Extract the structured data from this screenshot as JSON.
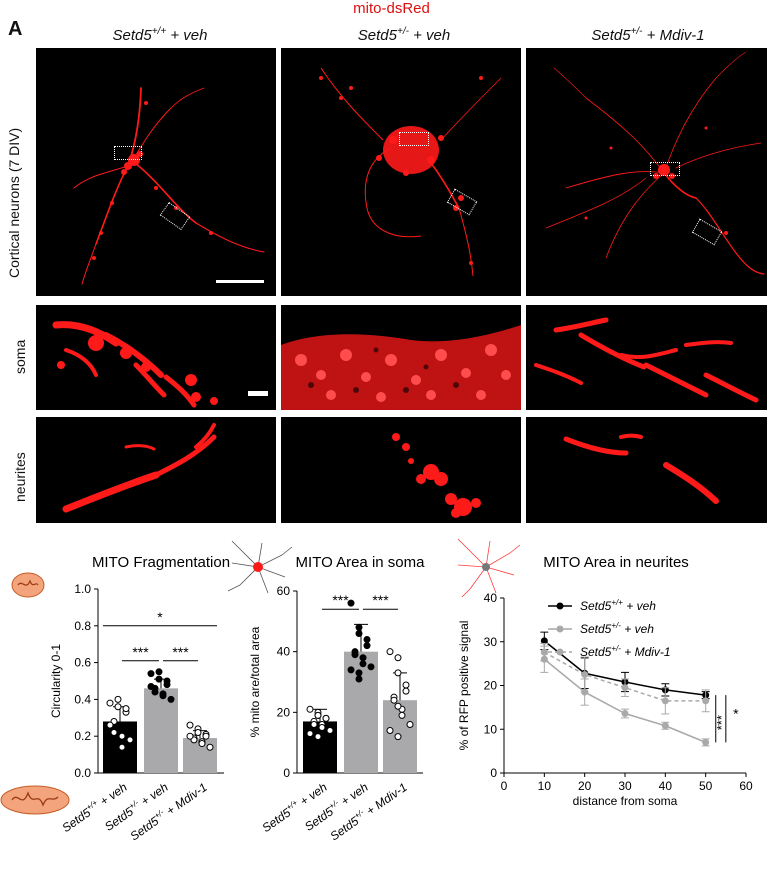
{
  "figure": {
    "panel_letter": "A",
    "top_label": "mito-dsRed",
    "columns": [
      {
        "base": "Setd5",
        "sup": "+/+",
        "suffix": " + veh"
      },
      {
        "base": "Setd5",
        "sup": "+/-",
        "suffix": " + veh"
      },
      {
        "base": "Setd5",
        "sup": "+/-",
        "suffix": " + Mdiv-1"
      }
    ],
    "row_labels": [
      "Cortical neurons (7 DIV)",
      "soma",
      "neurites"
    ]
  },
  "colors": {
    "wt": "#000000",
    "het": "#a9a9ab",
    "mdiv": "#a9a9ab",
    "signal": "#ff1a1a"
  },
  "chart_data": [
    {
      "type": "bar",
      "title": "MITO Fragmentation",
      "ylabel": "Circularity 0-1",
      "ylim": [
        0,
        1
      ],
      "yticks": [
        "0.0",
        "0.2",
        "0.4",
        "0.6",
        "0.8",
        "1.0"
      ],
      "categories": [
        "Setd5+/+ + veh",
        "Setd5+/- + veh",
        "Setd5+/- + Mdiv-1"
      ],
      "values": [
        0.28,
        0.46,
        0.19
      ],
      "errors": [
        0.08,
        0.05,
        0.04
      ],
      "points": [
        [
          0.38,
          0.36,
          0.4,
          0.33,
          0.35,
          0.28,
          0.22,
          0.2,
          0.14,
          0.18,
          0.26
        ],
        [
          0.54,
          0.55,
          0.51,
          0.5,
          0.48,
          0.46,
          0.44,
          0.43,
          0.42,
          0.4,
          0.47
        ],
        [
          0.26,
          0.24,
          0.22,
          0.21,
          0.2,
          0.19,
          0.18,
          0.17,
          0.16,
          0.14,
          0.2
        ]
      ],
      "significance": [
        {
          "from": 0,
          "to": 2,
          "label": "*",
          "y": 0.8
        },
        {
          "from": 0,
          "to": 1,
          "label": "***",
          "y": 0.61
        },
        {
          "from": 1,
          "to": 2,
          "label": "***",
          "y": 0.61
        }
      ]
    },
    {
      "type": "bar",
      "title": "MITO Area in soma",
      "ylabel": "% mito are/total area",
      "ylim": [
        0,
        60
      ],
      "yticks": [
        "0",
        "20",
        "40",
        "60"
      ],
      "categories": [
        "Setd5+/+ + veh",
        "Setd5+/- + veh",
        "Setd5+/- + Mdiv-1"
      ],
      "values": [
        17,
        40,
        24
      ],
      "errors": [
        4,
        9,
        9
      ],
      "points": [
        [
          21,
          20,
          19,
          18,
          18,
          17,
          16,
          16,
          15,
          14,
          13,
          12,
          19
        ],
        [
          56,
          48,
          46,
          44,
          42,
          40,
          39,
          38,
          36,
          35,
          34,
          33,
          31
        ],
        [
          40,
          38,
          33,
          29,
          27,
          25,
          24,
          21,
          19,
          16,
          14,
          12,
          22
        ]
      ],
      "significance": [
        {
          "from": 0,
          "to": 1,
          "label": "***",
          "y": 54
        },
        {
          "from": 1,
          "to": 2,
          "label": "***",
          "y": 54
        }
      ]
    },
    {
      "type": "line",
      "title": "MITO Area in neurites",
      "ylabel": "% of RFP positive signal",
      "xlabel": "distance from soma",
      "xlim": [
        0,
        60
      ],
      "ylim": [
        0,
        40
      ],
      "xticks": [
        "0",
        "10",
        "20",
        "30",
        "40",
        "50",
        "60"
      ],
      "yticks": [
        "0",
        "10",
        "20",
        "30",
        "40"
      ],
      "x": [
        10,
        20,
        30,
        40,
        50
      ],
      "series": [
        {
          "name_base": "Setd5",
          "name_sup": "+/+",
          "name_suffix": " + veh",
          "values": [
            30.2,
            22.8,
            20.8,
            19.0,
            17.8
          ],
          "errors": [
            2.0,
            3.5,
            2.2,
            1.4,
            0.8
          ],
          "color": "#000000",
          "dashed": false
        },
        {
          "name_base": "Setd5",
          "name_sup": "+/-",
          "name_suffix": " + veh",
          "values": [
            26.0,
            18.5,
            13.6,
            10.8,
            7.0
          ],
          "errors": [
            3.0,
            3.0,
            1.0,
            0.8,
            0.8
          ],
          "color": "#a9a9ab",
          "dashed": false
        },
        {
          "name_base": "Setd5",
          "name_sup": "+/-",
          "name_suffix": " + Mdiv-1",
          "values": [
            27.6,
            22.5,
            19.5,
            16.5,
            16.5
          ],
          "errors": [
            2.0,
            4.0,
            2.0,
            3.0,
            2.5
          ],
          "color": "#a9a9ab",
          "dashed": true
        }
      ],
      "significance": [
        {
          "label": "***"
        },
        {
          "label": "*"
        }
      ]
    }
  ]
}
